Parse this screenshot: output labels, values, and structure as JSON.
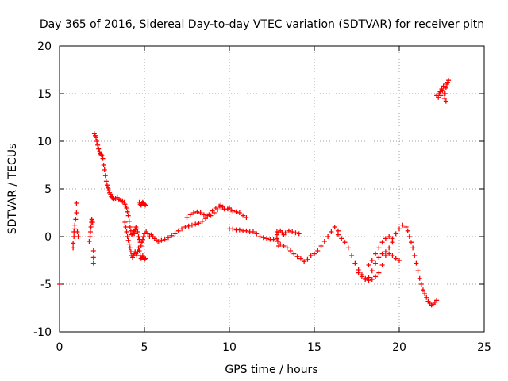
{
  "chart_data": {
    "type": "scatter",
    "title": "Day 365 of 2016, Sidereal Day-to-day VTEC variation (SDTVAR) for receiver pitn",
    "xlabel": "GPS time / hours",
    "ylabel": "SDTVAR / TECUs",
    "xlim": [
      0,
      25
    ],
    "ylim": [
      -10,
      20
    ],
    "xticks": [
      0,
      5,
      10,
      15,
      20,
      25
    ],
    "yticks": [
      -10,
      -5,
      0,
      5,
      10,
      15,
      20
    ],
    "xtick_labels": [
      "0",
      "5",
      "10",
      "15",
      "20",
      "25"
    ],
    "ytick_labels": [
      "-10",
      "-5",
      "0",
      "5",
      "10",
      "15",
      "20"
    ],
    "grid": true,
    "marker": "plus",
    "color": "#ff0000",
    "series": [
      {
        "name": "SDTVAR",
        "points": [
          [
            0.0,
            -5.0
          ],
          [
            0.8,
            -1.2
          ],
          [
            0.8,
            -0.7
          ],
          [
            0.85,
            0.0
          ],
          [
            0.85,
            0.5
          ],
          [
            0.9,
            0.8
          ],
          [
            0.9,
            1.2
          ],
          [
            0.95,
            1.8
          ],
          [
            1.0,
            2.5
          ],
          [
            1.0,
            3.5
          ],
          [
            1.05,
            0.5
          ],
          [
            1.1,
            0.0
          ],
          [
            1.75,
            -0.5
          ],
          [
            1.8,
            0.0
          ],
          [
            1.82,
            0.5
          ],
          [
            1.85,
            1.0
          ],
          [
            1.88,
            1.5
          ],
          [
            1.9,
            1.8
          ],
          [
            1.95,
            1.5
          ],
          [
            2.0,
            -1.5
          ],
          [
            2.0,
            -2.2
          ],
          [
            2.0,
            -2.8
          ],
          [
            2.05,
            10.8
          ],
          [
            2.1,
            10.6
          ],
          [
            2.15,
            10.4
          ],
          [
            2.2,
            10.0
          ],
          [
            2.25,
            9.6
          ],
          [
            2.3,
            9.2
          ],
          [
            2.35,
            8.9
          ],
          [
            2.4,
            8.7
          ],
          [
            2.45,
            8.6
          ],
          [
            2.5,
            8.5
          ],
          [
            2.55,
            8.2
          ],
          [
            2.6,
            7.5
          ],
          [
            2.65,
            7.0
          ],
          [
            2.7,
            6.4
          ],
          [
            2.75,
            5.8
          ],
          [
            2.8,
            5.4
          ],
          [
            2.85,
            5.1
          ],
          [
            2.9,
            4.8
          ],
          [
            2.95,
            4.6
          ],
          [
            3.0,
            4.4
          ],
          [
            3.05,
            4.2
          ],
          [
            3.1,
            4.1
          ],
          [
            3.15,
            4.0
          ],
          [
            3.2,
            3.9
          ],
          [
            3.3,
            4.0
          ],
          [
            3.4,
            4.1
          ],
          [
            3.5,
            3.9
          ],
          [
            3.6,
            3.8
          ],
          [
            3.7,
            3.7
          ],
          [
            3.8,
            3.6
          ],
          [
            3.85,
            3.4
          ],
          [
            3.9,
            3.2
          ],
          [
            3.95,
            3.0
          ],
          [
            4.0,
            2.6
          ],
          [
            4.05,
            2.2
          ],
          [
            4.1,
            1.6
          ],
          [
            4.15,
            1.0
          ],
          [
            4.2,
            0.6
          ],
          [
            4.25,
            0.2
          ],
          [
            4.3,
            0.3
          ],
          [
            4.35,
            0.6
          ],
          [
            4.4,
            0.3
          ],
          [
            4.45,
            0.7
          ],
          [
            4.5,
            1.0
          ],
          [
            4.55,
            0.8
          ],
          [
            4.6,
            0.5
          ],
          [
            4.65,
            0.0
          ],
          [
            4.7,
            -0.3
          ],
          [
            4.75,
            -0.6
          ],
          [
            3.85,
            1.5
          ],
          [
            3.9,
            1.0
          ],
          [
            3.95,
            0.5
          ],
          [
            4.0,
            0.0
          ],
          [
            4.05,
            -0.4
          ],
          [
            4.1,
            -0.8
          ],
          [
            4.15,
            -1.2
          ],
          [
            4.2,
            -1.6
          ],
          [
            4.25,
            -2.0
          ],
          [
            4.3,
            -2.2
          ],
          [
            4.35,
            -2.0
          ],
          [
            4.4,
            -1.8
          ],
          [
            4.45,
            -1.6
          ],
          [
            4.5,
            -1.8
          ],
          [
            4.55,
            -2.0
          ],
          [
            4.6,
            -1.6
          ],
          [
            4.65,
            -1.2
          ],
          [
            4.7,
            -1.5
          ],
          [
            4.75,
            -2.0
          ],
          [
            4.8,
            -2.3
          ],
          [
            4.85,
            -2.2
          ],
          [
            4.9,
            -2.0
          ],
          [
            4.95,
            -2.2
          ],
          [
            5.0,
            -2.4
          ],
          [
            5.05,
            -2.3
          ],
          [
            4.7,
            3.6
          ],
          [
            4.75,
            3.4
          ],
          [
            4.8,
            3.3
          ],
          [
            4.85,
            3.5
          ],
          [
            4.9,
            3.6
          ],
          [
            4.95,
            3.5
          ],
          [
            5.0,
            3.4
          ],
          [
            5.05,
            3.3
          ],
          [
            4.8,
            -1.0
          ],
          [
            4.85,
            -0.6
          ],
          [
            4.9,
            -0.3
          ],
          [
            4.95,
            0.0
          ],
          [
            5.0,
            0.3
          ],
          [
            5.1,
            0.5
          ],
          [
            5.2,
            0.3
          ],
          [
            5.3,
            0.0
          ],
          [
            5.4,
            0.2
          ],
          [
            5.5,
            0.0
          ],
          [
            5.6,
            -0.2
          ],
          [
            5.7,
            -0.4
          ],
          [
            5.8,
            -0.5
          ],
          [
            5.9,
            -0.5
          ],
          [
            6.0,
            -0.4
          ],
          [
            6.2,
            -0.3
          ],
          [
            6.4,
            -0.1
          ],
          [
            6.6,
            0.1
          ],
          [
            6.8,
            0.3
          ],
          [
            7.0,
            0.6
          ],
          [
            7.2,
            0.8
          ],
          [
            7.4,
            1.0
          ],
          [
            7.6,
            1.1
          ],
          [
            7.8,
            1.2
          ],
          [
            8.0,
            1.3
          ],
          [
            8.2,
            1.4
          ],
          [
            8.4,
            1.6
          ],
          [
            8.6,
            1.9
          ],
          [
            8.8,
            2.3
          ],
          [
            9.0,
            2.7
          ],
          [
            9.2,
            3.0
          ],
          [
            9.4,
            3.2
          ],
          [
            9.5,
            3.3
          ],
          [
            9.6,
            3.1
          ],
          [
            9.7,
            2.9
          ],
          [
            7.5,
            2.0
          ],
          [
            7.7,
            2.3
          ],
          [
            7.9,
            2.5
          ],
          [
            8.1,
            2.6
          ],
          [
            8.3,
            2.5
          ],
          [
            8.5,
            2.3
          ],
          [
            8.7,
            2.2
          ],
          [
            8.9,
            2.2
          ],
          [
            9.1,
            2.5
          ],
          [
            9.3,
            2.8
          ],
          [
            9.5,
            3.1
          ],
          [
            9.9,
            2.9
          ],
          [
            10.0,
            3.0
          ],
          [
            10.1,
            2.8
          ],
          [
            10.2,
            2.7
          ],
          [
            10.4,
            2.6
          ],
          [
            10.6,
            2.5
          ],
          [
            10.8,
            2.2
          ],
          [
            11.0,
            2.0
          ],
          [
            10.0,
            0.8
          ],
          [
            10.2,
            0.8
          ],
          [
            10.4,
            0.7
          ],
          [
            10.6,
            0.7
          ],
          [
            10.8,
            0.6
          ],
          [
            11.0,
            0.6
          ],
          [
            11.2,
            0.5
          ],
          [
            11.4,
            0.5
          ],
          [
            11.6,
            0.3
          ],
          [
            11.8,
            0.0
          ],
          [
            12.0,
            -0.1
          ],
          [
            12.2,
            -0.2
          ],
          [
            12.4,
            -0.3
          ],
          [
            12.6,
            -0.3
          ],
          [
            12.8,
            -0.2
          ],
          [
            12.8,
            0.5
          ],
          [
            12.85,
            -0.5
          ],
          [
            12.9,
            -1.0
          ],
          [
            13.0,
            -0.8
          ],
          [
            13.2,
            -1.0
          ],
          [
            13.4,
            -1.2
          ],
          [
            13.6,
            -1.5
          ],
          [
            13.8,
            -1.8
          ],
          [
            14.0,
            -2.1
          ],
          [
            14.2,
            -2.3
          ],
          [
            14.4,
            -2.6
          ],
          [
            14.6,
            -2.4
          ],
          [
            14.8,
            -2.0
          ],
          [
            15.0,
            -1.8
          ],
          [
            15.2,
            -1.5
          ],
          [
            15.4,
            -1.0
          ],
          [
            15.6,
            -0.5
          ],
          [
            15.8,
            0.0
          ],
          [
            16.0,
            0.5
          ],
          [
            16.2,
            1.0
          ],
          [
            16.4,
            0.6
          ],
          [
            12.8,
            0.2
          ],
          [
            12.9,
            0.4
          ],
          [
            13.0,
            0.6
          ],
          [
            13.1,
            0.4
          ],
          [
            13.2,
            0.2
          ],
          [
            13.3,
            0.4
          ],
          [
            13.5,
            0.6
          ],
          [
            13.7,
            0.5
          ],
          [
            13.9,
            0.4
          ],
          [
            14.1,
            0.3
          ],
          [
            16.4,
            0.2
          ],
          [
            16.6,
            -0.2
          ],
          [
            16.8,
            -0.6
          ],
          [
            17.0,
            -1.2
          ],
          [
            17.2,
            -2.0
          ],
          [
            17.4,
            -2.8
          ],
          [
            17.6,
            -3.5
          ],
          [
            17.8,
            -4.0
          ],
          [
            18.0,
            -4.4
          ],
          [
            18.2,
            -4.6
          ],
          [
            18.4,
            -4.5
          ],
          [
            18.6,
            -4.2
          ],
          [
            18.8,
            -3.8
          ],
          [
            19.0,
            -3.0
          ],
          [
            19.2,
            -2.0
          ],
          [
            19.4,
            -1.2
          ],
          [
            19.6,
            -0.6
          ],
          [
            17.6,
            -3.8
          ],
          [
            17.8,
            -4.2
          ],
          [
            18.0,
            -4.5
          ],
          [
            18.2,
            -4.3
          ],
          [
            18.4,
            -3.6
          ],
          [
            18.6,
            -2.8
          ],
          [
            18.8,
            -2.2
          ],
          [
            19.0,
            -1.8
          ],
          [
            19.2,
            -1.6
          ],
          [
            19.4,
            -1.8
          ],
          [
            19.6,
            -2.0
          ],
          [
            19.8,
            -2.3
          ],
          [
            20.0,
            -2.5
          ],
          [
            18.2,
            -3.0
          ],
          [
            18.4,
            -2.5
          ],
          [
            18.6,
            -1.8
          ],
          [
            18.8,
            -1.2
          ],
          [
            19.0,
            -0.6
          ],
          [
            19.2,
            -0.2
          ],
          [
            19.4,
            0.0
          ],
          [
            19.6,
            -0.2
          ],
          [
            19.8,
            0.3
          ],
          [
            20.0,
            0.8
          ],
          [
            20.2,
            1.2
          ],
          [
            20.4,
            1.0
          ],
          [
            20.5,
            0.6
          ],
          [
            20.6,
            0.0
          ],
          [
            20.7,
            -0.6
          ],
          [
            20.8,
            -1.2
          ],
          [
            20.9,
            -2.0
          ],
          [
            21.0,
            -2.8
          ],
          [
            21.1,
            -3.6
          ],
          [
            21.2,
            -4.4
          ],
          [
            21.3,
            -5.0
          ],
          [
            21.4,
            -5.6
          ],
          [
            21.5,
            -6.0
          ],
          [
            21.6,
            -6.4
          ],
          [
            21.7,
            -6.8
          ],
          [
            21.8,
            -7.0
          ],
          [
            21.9,
            -7.2
          ],
          [
            22.0,
            -7.1
          ],
          [
            22.1,
            -6.9
          ],
          [
            22.2,
            -6.7
          ],
          [
            22.2,
            14.8
          ],
          [
            22.3,
            14.6
          ],
          [
            22.35,
            15.0
          ],
          [
            22.4,
            15.2
          ],
          [
            22.45,
            14.8
          ],
          [
            22.5,
            15.5
          ],
          [
            22.55,
            15.3
          ],
          [
            22.6,
            15.8
          ],
          [
            22.65,
            14.5
          ],
          [
            22.7,
            15.0
          ],
          [
            22.75,
            15.6
          ],
          [
            22.8,
            16.0
          ],
          [
            22.85,
            16.2
          ],
          [
            22.9,
            16.4
          ],
          [
            22.75,
            14.2
          ]
        ]
      }
    ]
  }
}
